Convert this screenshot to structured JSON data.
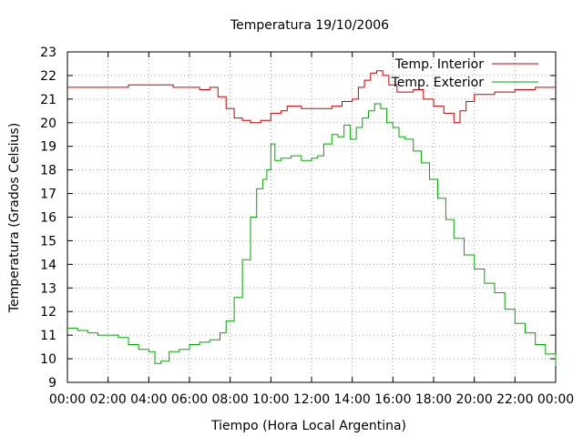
{
  "chart_data": {
    "type": "line",
    "title": "Temperatura 19/10/2006",
    "xlabel": "Tiempo (Hora Local Argentina)",
    "ylabel": "Temperatura (Grados Celsius)",
    "xlim": [
      0,
      24
    ],
    "ylim": [
      9,
      23
    ],
    "grid": true,
    "legend_position": "top-right",
    "x_tick_labels": [
      "00:00",
      "02:00",
      "04:00",
      "06:00",
      "08:00",
      "10:00",
      "12:00",
      "14:00",
      "16:00",
      "18:00",
      "20:00",
      "22:00",
      "00:00"
    ],
    "y_tick_labels": [
      "9",
      "10",
      "11",
      "12",
      "13",
      "14",
      "15",
      "16",
      "17",
      "18",
      "19",
      "20",
      "21",
      "22",
      "23"
    ],
    "series": [
      {
        "name": "Temp. Interior",
        "color": "#cc0000",
        "x": [
          0,
          1,
          2,
          3,
          4,
          5,
          5.2,
          6,
          6.5,
          7,
          7.4,
          7.8,
          8.2,
          8.6,
          9,
          9.5,
          10,
          10.5,
          10.8,
          11.5,
          12,
          12.5,
          13,
          13.5,
          13.8,
          14,
          14.3,
          14.6,
          14.9,
          15.2,
          15.5,
          15.8,
          16.2,
          16.6,
          17,
          17.5,
          18,
          18.5,
          19,
          19.3,
          19.6,
          20,
          21,
          22,
          23,
          24
        ],
        "y": [
          21.5,
          21.5,
          21.5,
          21.6,
          21.6,
          21.6,
          21.5,
          21.5,
          21.4,
          21.5,
          21.1,
          20.6,
          20.2,
          20.1,
          20.0,
          20.1,
          20.4,
          20.5,
          20.7,
          20.6,
          20.6,
          20.6,
          20.7,
          20.9,
          20.9,
          21.0,
          21.5,
          21.8,
          22.1,
          22.2,
          22.0,
          21.6,
          21.3,
          21.3,
          21.4,
          21.0,
          20.7,
          20.4,
          20.0,
          20.5,
          20.9,
          21.2,
          21.3,
          21.4,
          21.5,
          21.5
        ]
      },
      {
        "name": "Temp. Exterior",
        "color": "#00aa00",
        "x": [
          0,
          0.5,
          1,
          1.5,
          2,
          2.5,
          3,
          3.5,
          4,
          4.3,
          4.6,
          5,
          5.5,
          6,
          6.5,
          7,
          7.5,
          7.8,
          8.2,
          8.6,
          9,
          9.3,
          9.6,
          9.8,
          10,
          10.2,
          10.5,
          11,
          11.5,
          12,
          12.3,
          12.6,
          13,
          13.3,
          13.6,
          13.9,
          14.2,
          14.5,
          14.8,
          15.1,
          15.4,
          15.7,
          16,
          16.3,
          16.6,
          17,
          17.4,
          17.8,
          18.2,
          18.6,
          19,
          19.5,
          20,
          20.5,
          21,
          21.5,
          22,
          22.5,
          23,
          23.5,
          24
        ],
        "y": [
          11.3,
          11.2,
          11.1,
          11.0,
          11.0,
          10.9,
          10.6,
          10.4,
          10.3,
          9.8,
          9.9,
          10.3,
          10.4,
          10.6,
          10.7,
          10.8,
          11.1,
          11.6,
          12.6,
          14.2,
          16.0,
          17.2,
          17.6,
          18.0,
          19.1,
          18.4,
          18.5,
          18.6,
          18.4,
          18.5,
          18.6,
          19.1,
          19.5,
          19.4,
          19.9,
          19.3,
          19.8,
          20.2,
          20.5,
          20.8,
          20.6,
          20.0,
          19.8,
          19.4,
          19.3,
          18.8,
          18.3,
          17.6,
          16.8,
          15.9,
          15.1,
          14.4,
          13.8,
          13.2,
          12.8,
          12.1,
          11.5,
          11.1,
          10.6,
          10.2,
          9.7
        ]
      }
    ]
  }
}
